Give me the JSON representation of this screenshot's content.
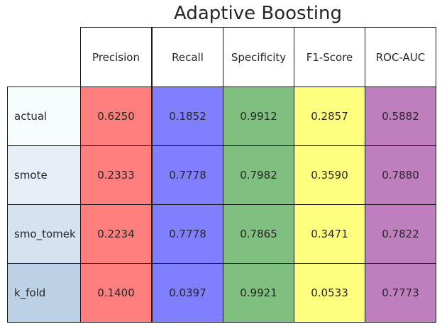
{
  "chart_data": {
    "type": "table",
    "title": "Adaptive Boosting",
    "columns": [
      "Precision",
      "Recall",
      "Specificity",
      "F1-Score",
      "ROC-AUC"
    ],
    "rows": [
      {
        "label": "actual",
        "values": [
          "0.6250",
          "0.1852",
          "0.9912",
          "0.2857",
          "0.5882"
        ]
      },
      {
        "label": "smote",
        "values": [
          "0.2333",
          "0.7778",
          "0.7982",
          "0.3590",
          "0.7880"
        ]
      },
      {
        "label": "smo_tomek",
        "values": [
          "0.2234",
          "0.7778",
          "0.7865",
          "0.3471",
          "0.7822"
        ]
      },
      {
        "label": "k_fold",
        "values": [
          "0.1400",
          "0.0397",
          "0.9921",
          "0.0533",
          "0.7773"
        ]
      }
    ],
    "column_colors": [
      "#ff7f7f",
      "#7f7fff",
      "#7fbf7f",
      "#ffff7f",
      "#bf7fbf"
    ],
    "row_colors": [
      "#f7fcfd",
      "#e6eff7",
      "#d4e3ef",
      "#bdd1e6"
    ]
  }
}
